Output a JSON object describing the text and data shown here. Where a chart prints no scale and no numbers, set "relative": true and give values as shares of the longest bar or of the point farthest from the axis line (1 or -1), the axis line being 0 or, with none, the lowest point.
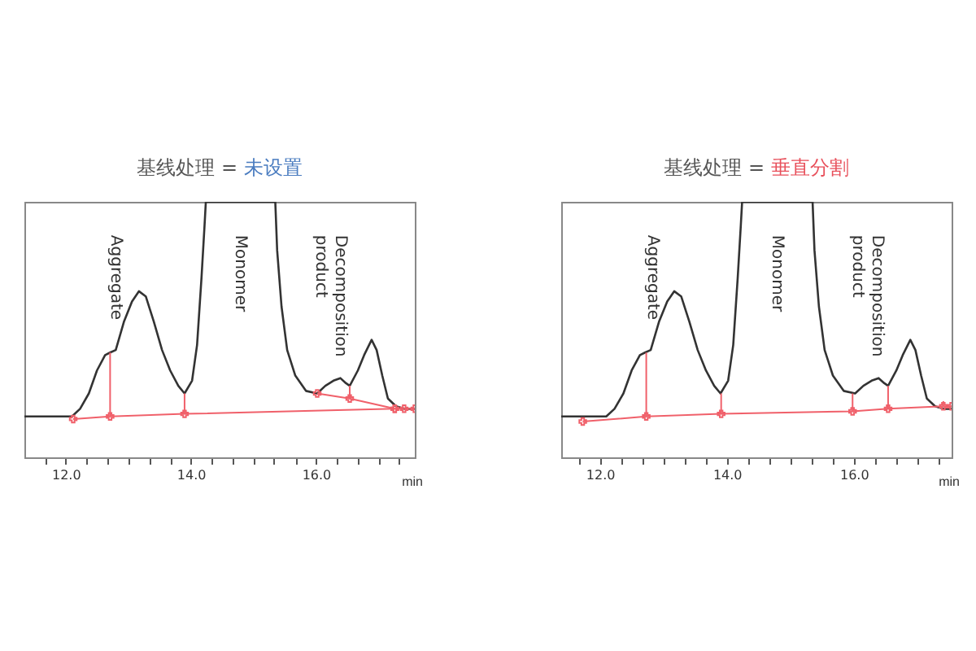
{
  "chart_data": [
    {
      "type": "line",
      "relative": true,
      "title": "基线处理 = 未设置",
      "xlabel": "min",
      "marker": "none",
      "xlim": [
        11.34,
        17.58
      ],
      "xticks": [
        {
          "value": 11.67,
          "label": null
        },
        {
          "value": 12,
          "label": "12.0"
        },
        {
          "value": 12.33,
          "label": null
        },
        {
          "value": 12.67,
          "label": null
        },
        {
          "value": 13,
          "label": null
        },
        {
          "value": 13.33,
          "label": null
        },
        {
          "value": 13.67,
          "label": null
        },
        {
          "value": 14,
          "label": "14.0"
        },
        {
          "value": 14.33,
          "label": null
        },
        {
          "value": 14.67,
          "label": null
        },
        {
          "value": 15,
          "label": null
        },
        {
          "value": 15.33,
          "label": null
        },
        {
          "value": 15.67,
          "label": null
        },
        {
          "value": 16,
          "label": "16.0"
        },
        {
          "value": 16.33,
          "label": null
        },
        {
          "value": 16.67,
          "label": null
        },
        {
          "value": 17,
          "label": null
        },
        {
          "value": 17.33,
          "label": null
        }
      ],
      "annotations": [
        "Aggregate",
        "Monomer",
        "Decomposition\nproduct"
      ],
      "series": [
        {
          "color": "#333333",
          "x": [
            11.34,
            11.71,
            12.1,
            12.23,
            12.37,
            12.5,
            12.63,
            12.71,
            12.8,
            12.93,
            13.06,
            13.17,
            13.28,
            13.41,
            13.54,
            13.67,
            13.8,
            13.9,
            14.02,
            14.1,
            14.17,
            14.22,
            14.24,
            15.35,
            15.38,
            15.45,
            15.54,
            15.67,
            15.84,
            16.02,
            16.15,
            16.28,
            16.39,
            16.48,
            16.54,
            16.67,
            16.77,
            16.89,
            16.97,
            17.06,
            17.15,
            17.28,
            17.41,
            17.58
          ],
          "values": [
            0.16,
            0.16,
            0.16,
            0.19,
            0.25,
            0.34,
            0.4,
            0.41,
            0.42,
            0.53,
            0.61,
            0.65,
            0.63,
            0.53,
            0.42,
            0.34,
            0.28,
            0.25,
            0.3,
            0.44,
            0.7,
            0.91,
            1.0,
            1.0,
            0.81,
            0.59,
            0.42,
            0.32,
            0.26,
            0.25,
            0.28,
            0.3,
            0.31,
            0.29,
            0.28,
            0.34,
            0.4,
            0.46,
            0.42,
            0.32,
            0.23,
            0.2,
            0.19,
            0.19
          ]
        },
        {
          "color": "#f0606a",
          "marker": "cross",
          "x": [
            12.12,
            12.71,
            13.9,
            17.26,
            17.41,
            17.58
          ],
          "values": [
            0.15,
            0.16,
            0.17,
            0.19,
            0.19,
            0.19
          ]
        },
        {
          "color": "#f0606a",
          "marker": "cross",
          "x": [
            16.02,
            16.54,
            17.26
          ],
          "values": [
            0.25,
            0.23,
            0.19
          ]
        },
        {
          "color": "#f0606a",
          "x": [
            12.71,
            12.71
          ],
          "values": [
            0.16,
            0.41
          ]
        },
        {
          "color": "#f0606a",
          "x": [
            13.9,
            13.9
          ],
          "values": [
            0.17,
            0.25
          ]
        },
        {
          "color": "#f0606a",
          "x": [
            16.54,
            16.54
          ],
          "values": [
            0.23,
            0.28
          ]
        }
      ]
    },
    {
      "type": "line",
      "relative": true,
      "title": "基线处理 = 垂直分割",
      "xlabel": "min",
      "marker": "none",
      "xlim": [
        11.39,
        17.54
      ],
      "xticks": [
        {
          "value": 11.67,
          "label": null
        },
        {
          "value": 12,
          "label": "12.0"
        },
        {
          "value": 12.33,
          "label": null
        },
        {
          "value": 12.67,
          "label": null
        },
        {
          "value": 13,
          "label": null
        },
        {
          "value": 13.33,
          "label": null
        },
        {
          "value": 13.67,
          "label": null
        },
        {
          "value": 14,
          "label": "14.0"
        },
        {
          "value": 14.33,
          "label": null
        },
        {
          "value": 14.67,
          "label": null
        },
        {
          "value": 15,
          "label": null
        },
        {
          "value": 15.33,
          "label": null
        },
        {
          "value": 15.67,
          "label": null
        },
        {
          "value": 16,
          "label": "16.0"
        },
        {
          "value": 16.33,
          "label": null
        },
        {
          "value": 16.67,
          "label": null
        },
        {
          "value": 17,
          "label": null
        },
        {
          "value": 17.33,
          "label": null
        }
      ],
      "annotations": [
        "Aggregate",
        "Monomer",
        "Decomposition\nproduct"
      ],
      "series": [
        {
          "color": "#333333",
          "x": [
            11.39,
            11.71,
            12.1,
            12.23,
            12.37,
            12.5,
            12.63,
            12.71,
            12.8,
            12.93,
            13.06,
            13.17,
            13.28,
            13.41,
            13.54,
            13.67,
            13.8,
            13.9,
            14.02,
            14.1,
            14.17,
            14.22,
            14.24,
            15.35,
            15.38,
            15.45,
            15.54,
            15.67,
            15.84,
            16.02,
            16.15,
            16.28,
            16.39,
            16.48,
            16.54,
            16.67,
            16.77,
            16.89,
            16.97,
            17.06,
            17.15,
            17.28,
            17.41,
            17.54
          ],
          "values": [
            0.16,
            0.16,
            0.16,
            0.19,
            0.25,
            0.34,
            0.4,
            0.41,
            0.42,
            0.53,
            0.61,
            0.65,
            0.63,
            0.53,
            0.42,
            0.34,
            0.28,
            0.25,
            0.3,
            0.44,
            0.7,
            0.91,
            1.0,
            1.0,
            0.81,
            0.59,
            0.42,
            0.32,
            0.26,
            0.25,
            0.28,
            0.3,
            0.31,
            0.29,
            0.28,
            0.34,
            0.4,
            0.46,
            0.42,
            0.32,
            0.23,
            0.2,
            0.19,
            0.19
          ]
        },
        {
          "color": "#f0606a",
          "marker": "cross",
          "x": [
            11.73,
            12.73,
            13.91,
            15.98,
            16.54,
            17.41,
            17.54
          ],
          "values": [
            0.14,
            0.16,
            0.17,
            0.18,
            0.19,
            0.2,
            0.2
          ]
        },
        {
          "color": "#f0606a",
          "x": [
            12.73,
            12.73
          ],
          "values": [
            0.16,
            0.41
          ]
        },
        {
          "color": "#f0606a",
          "x": [
            13.91,
            13.91
          ],
          "values": [
            0.17,
            0.25
          ]
        },
        {
          "color": "#f0606a",
          "x": [
            15.98,
            15.98
          ],
          "values": [
            0.18,
            0.25
          ]
        },
        {
          "color": "#f0606a",
          "x": [
            16.54,
            16.54
          ],
          "values": [
            0.19,
            0.28
          ]
        },
        {
          "color": "#f0606a",
          "x": [
            17.41,
            17.41
          ],
          "values": [
            0.2,
            0.22
          ]
        }
      ]
    }
  ]
}
